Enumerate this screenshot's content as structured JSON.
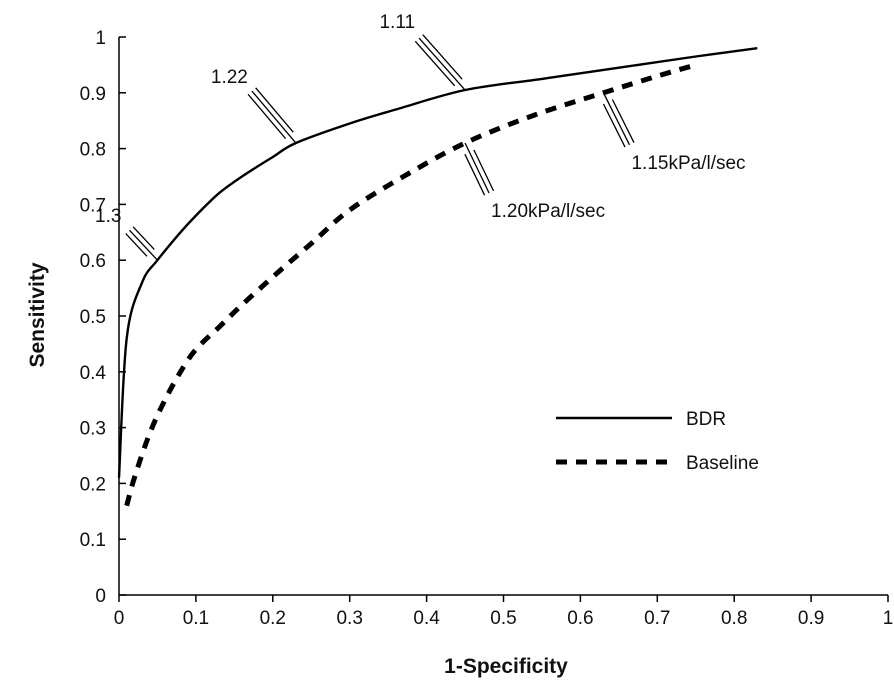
{
  "chart_data": {
    "type": "line",
    "title": "",
    "xlabel": "1-Specificity",
    "ylabel": "Sensitivity",
    "xlim": [
      0,
      1
    ],
    "ylim": [
      0,
      1
    ],
    "x_ticks": [
      "0",
      "0.1",
      "0.2",
      "0.3",
      "0.4",
      "0.5",
      "0.6",
      "0.7",
      "0.8",
      "0.9",
      "1"
    ],
    "y_ticks": [
      "0",
      "0.1",
      "0.2",
      "0.3",
      "0.4",
      "0.5",
      "0.6",
      "0.7",
      "0.8",
      "0.9",
      "1"
    ],
    "grid": false,
    "legend_position": "right",
    "series": [
      {
        "name": "BDR",
        "style": "solid",
        "x": [
          0,
          0.01,
          0.03,
          0.05,
          0.08,
          0.1,
          0.13,
          0.16,
          0.2,
          0.23,
          0.3,
          0.36,
          0.45,
          0.55,
          0.65,
          0.75,
          0.83
        ],
        "y": [
          0.21,
          0.46,
          0.56,
          0.6,
          0.65,
          0.68,
          0.72,
          0.75,
          0.785,
          0.81,
          0.845,
          0.87,
          0.905,
          0.925,
          0.945,
          0.965,
          0.98
        ]
      },
      {
        "name": "Baseline",
        "style": "dashed",
        "x": [
          0.01,
          0.02,
          0.04,
          0.06,
          0.08,
          0.1,
          0.13,
          0.16,
          0.2,
          0.25,
          0.3,
          0.37,
          0.45,
          0.54,
          0.63,
          0.7,
          0.75
        ],
        "y": [
          0.16,
          0.21,
          0.29,
          0.35,
          0.4,
          0.44,
          0.48,
          0.52,
          0.57,
          0.63,
          0.69,
          0.75,
          0.81,
          0.86,
          0.9,
          0.93,
          0.95
        ]
      }
    ],
    "annotations": [
      {
        "text": "1.3",
        "x": 0.05,
        "y": 0.6
      },
      {
        "text": "1.22",
        "x": 0.23,
        "y": 0.81
      },
      {
        "text": "1.11",
        "x": 0.45,
        "y": 0.905
      },
      {
        "text": "1.20kPa/l/sec",
        "x": 0.45,
        "y": 0.81
      },
      {
        "text": "1.15kPa/l/sec",
        "x": 0.63,
        "y": 0.9
      }
    ]
  }
}
